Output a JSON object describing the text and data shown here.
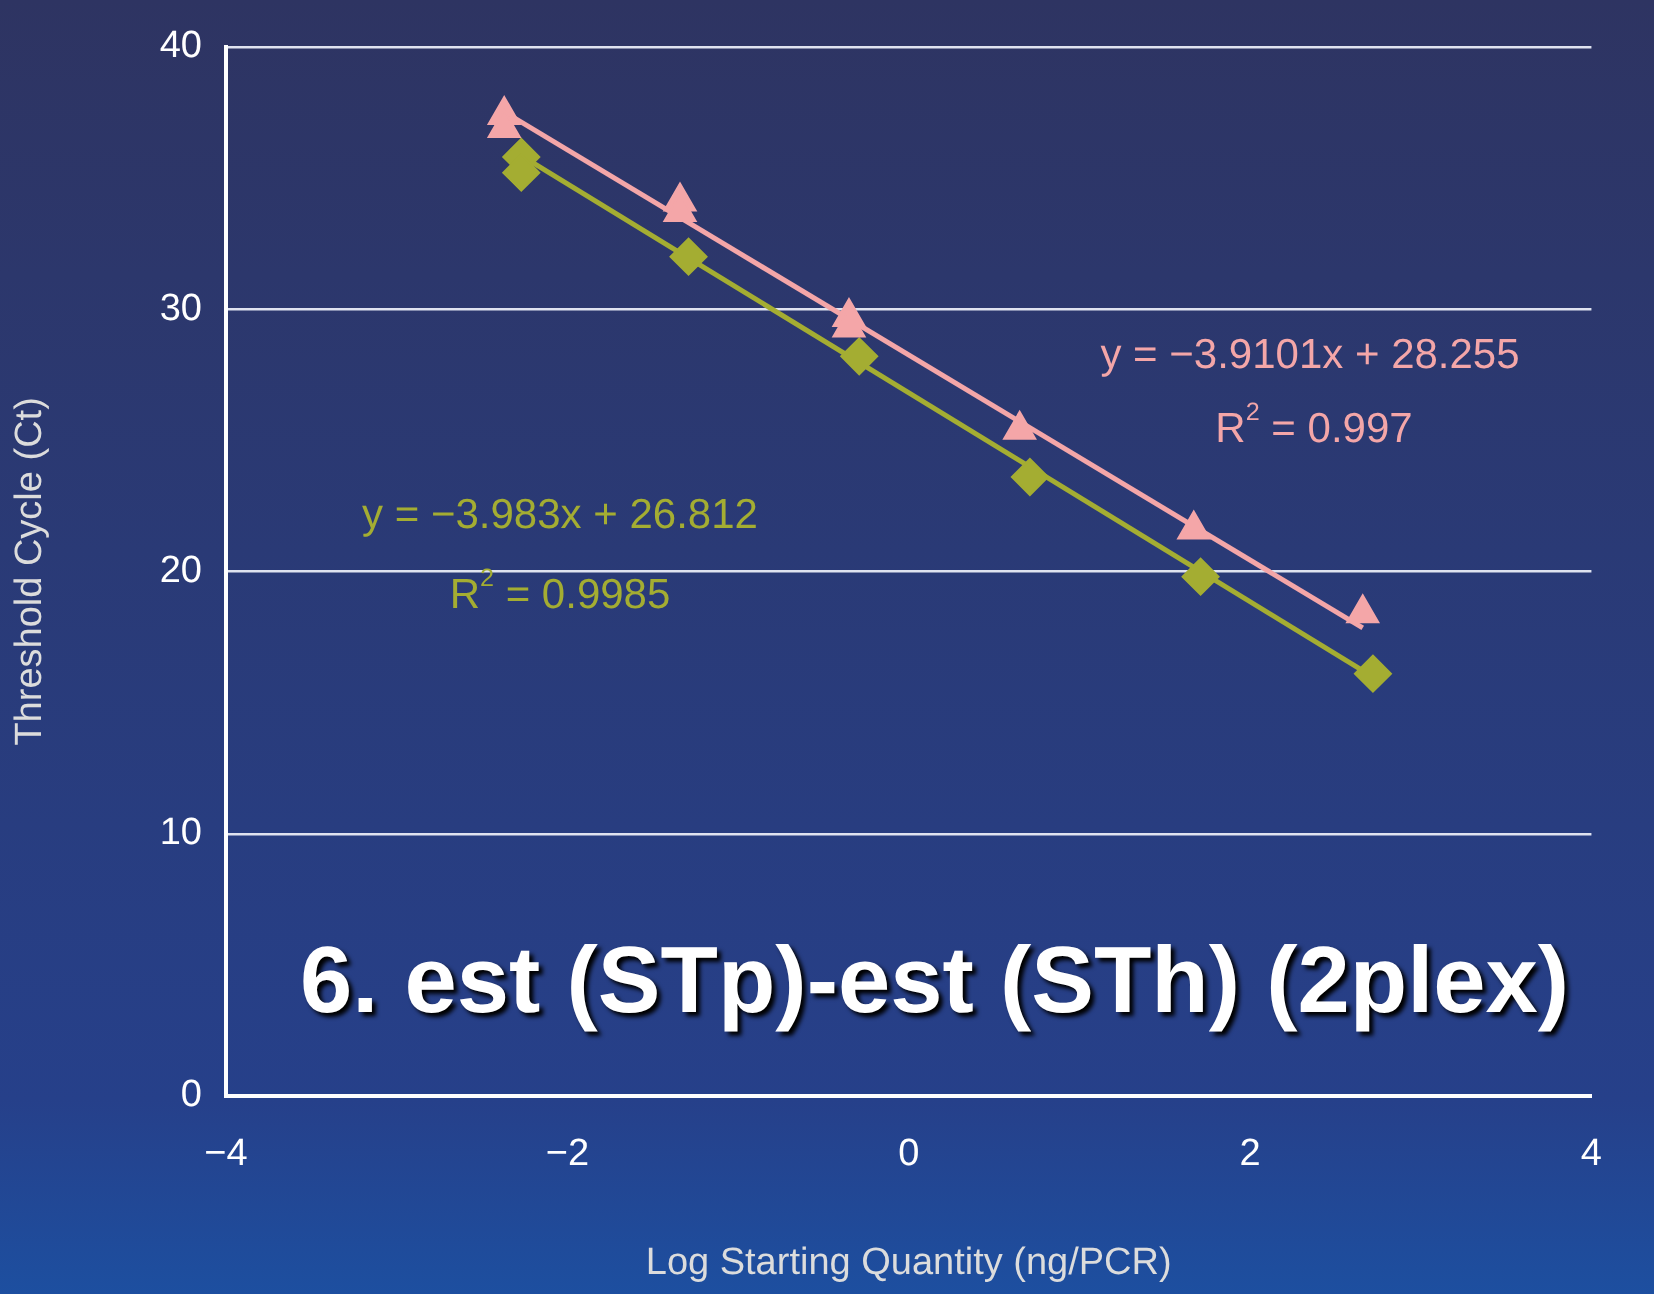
{
  "chart_data": {
    "type": "scatter",
    "title": "6. est (STp)-est (STh) (2plex)",
    "xlabel": "Log Starting Quantity (ng/PCR)",
    "ylabel": "Threshold Cycle (Ct)",
    "xlim": [
      -4,
      4
    ],
    "xticks": [
      -4,
      -2,
      0,
      2,
      4
    ],
    "ylim": [
      0,
      40
    ],
    "yticks": [
      0,
      10,
      20,
      30,
      40
    ],
    "grid": "y",
    "legend": false,
    "series": [
      {
        "type": "scatter",
        "marker": "triangle",
        "color": "#f4a6a8",
        "x": [
          -2.37,
          -2.37,
          -1.34,
          -1.34,
          -0.35,
          -0.35,
          0.65,
          1.67,
          2.66
        ],
        "values": [
          37.4,
          36.9,
          34.1,
          33.7,
          29.7,
          29.3,
          25.4,
          21.6,
          18.4
        ]
      },
      {
        "type": "scatter",
        "marker": "diamond",
        "color": "#a4ad32",
        "x": [
          -2.27,
          -2.27,
          -1.29,
          -0.29,
          0.71,
          1.71,
          2.72
        ],
        "values": [
          35.8,
          35.2,
          32.0,
          28.2,
          23.6,
          19.8,
          16.1
        ]
      },
      {
        "type": "line",
        "marker": "none",
        "color": "#f4a6a8",
        "x": [
          -2.37,
          2.66
        ],
        "values": [
          37.52,
          17.85
        ]
      },
      {
        "type": "line",
        "marker": "none",
        "color": "#a4ad32",
        "x": [
          -2.27,
          2.72
        ],
        "values": [
          35.85,
          15.98
        ]
      }
    ],
    "annotations": [
      "y = −3.9101x + 28.255",
      "R$^{2}$ = 0.997",
      "y = −3.983x + 26.812",
      "R$^{2}$ = 0.9985"
    ]
  }
}
